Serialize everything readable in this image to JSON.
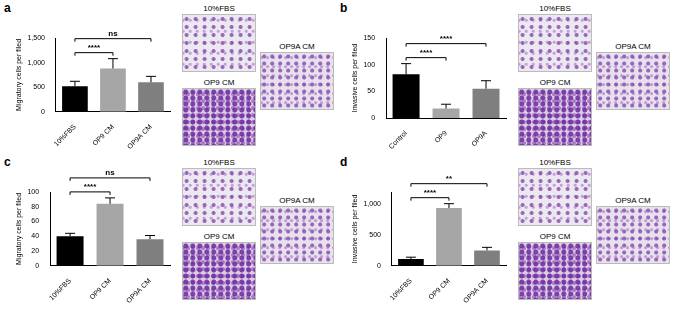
{
  "chart_data": [
    {
      "panel": "a",
      "type": "bar",
      "categories": [
        "10%FBS",
        "OP9 CM",
        "OP9A CM"
      ],
      "values": [
        520,
        880,
        600
      ],
      "errors": [
        100,
        200,
        120
      ],
      "colors": [
        "#000000",
        "#a6a6a6",
        "#7f7f7f"
      ],
      "ylabel": "Migratory cells per filed",
      "ylim": [
        0,
        1500
      ],
      "yticks": [
        0,
        500,
        1000,
        1500
      ],
      "significance": [
        {
          "between": [
            "10%FBS",
            "OP9 CM"
          ],
          "label": "****"
        },
        {
          "between": [
            "10%FBS",
            "OP9A CM"
          ],
          "label": "ns"
        }
      ],
      "image_labels": [
        "10%FBS",
        "OP9 CM",
        "OP9A CM"
      ]
    },
    {
      "panel": "b",
      "type": "bar",
      "categories": [
        "Control",
        "OP9",
        "OP9A"
      ],
      "values": [
        82,
        18,
        55
      ],
      "errors": [
        20,
        8,
        15
      ],
      "colors": [
        "#000000",
        "#a6a6a6",
        "#7f7f7f"
      ],
      "ylabel": "Invasive cells per filed",
      "ylim": [
        0,
        150
      ],
      "yticks": [
        0,
        50,
        100,
        150
      ],
      "significance": [
        {
          "between": [
            "Control",
            "OP9"
          ],
          "label": "****"
        },
        {
          "between": [
            "Control",
            "OP9A"
          ],
          "label": "****"
        }
      ],
      "image_labels": [
        "10%FBS",
        "OP9 CM",
        "OP9A CM"
      ]
    },
    {
      "panel": "c",
      "type": "bar",
      "categories": [
        "10%FBS",
        "OP9 CM",
        "OP9A CM"
      ],
      "values": [
        40,
        84,
        36
      ],
      "errors": [
        4,
        8,
        5
      ],
      "colors": [
        "#000000",
        "#a6a6a6",
        "#7f7f7f"
      ],
      "ylabel": "Migratory cells per filed",
      "ylim": [
        0,
        100
      ],
      "yticks": [
        0,
        20,
        40,
        60,
        80,
        100
      ],
      "significance": [
        {
          "between": [
            "10%FBS",
            "OP9 CM"
          ],
          "label": "****"
        },
        {
          "between": [
            "10%FBS",
            "OP9A CM"
          ],
          "label": "ns"
        }
      ],
      "image_labels": [
        "10%FBS",
        "OP9 CM",
        "OP9A CM"
      ]
    },
    {
      "panel": "d",
      "type": "bar",
      "categories": [
        "10%FBS",
        "OP9 CM",
        "OP9A CM"
      ],
      "values": [
        110,
        940,
        250
      ],
      "errors": [
        30,
        70,
        50
      ],
      "colors": [
        "#000000",
        "#a6a6a6",
        "#7f7f7f"
      ],
      "ylabel": "Invasive cells per filed",
      "ylim": [
        0,
        1200
      ],
      "yticks": [
        0,
        500,
        1000
      ],
      "significance": [
        {
          "between": [
            "10%FBS",
            "OP9 CM"
          ],
          "label": "****"
        },
        {
          "between": [
            "10%FBS",
            "OP9A CM"
          ],
          "label": "**"
        }
      ],
      "image_labels": [
        "10%FBS",
        "OP9 CM",
        "OP9A CM"
      ]
    }
  ]
}
